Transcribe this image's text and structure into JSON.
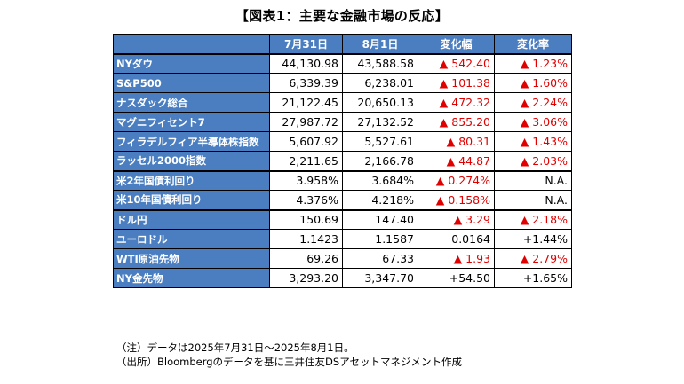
{
  "title": "【図表1：主要な金融市場の反応】",
  "columns": [
    "",
    "7月31日",
    "8月1日",
    "変化幅",
    "変化率"
  ],
  "rows": [
    {
      "name": "NYダウ",
      "v1": "44,130.98",
      "v2": "43,588.58",
      "chg": "▲ 542.40",
      "pct": "▲ 1.23%",
      "chg_up": true,
      "pct_up": true
    },
    {
      "name": "S&P500",
      "v1": "6,339.39",
      "v2": "6,238.01",
      "chg": "▲ 101.38",
      "pct": "▲ 1.60%",
      "chg_up": true,
      "pct_up": true
    },
    {
      "name": "ナスダック総合",
      "v1": "21,122.45",
      "v2": "20,650.13",
      "chg": "▲ 472.32",
      "pct": "▲ 2.24%",
      "chg_up": true,
      "pct_up": true
    },
    {
      "name": "マグニフィセント7",
      "v1": "27,987.72",
      "v2": "27,132.52",
      "chg": "▲ 855.20",
      "pct": "▲ 3.06%",
      "chg_up": true,
      "pct_up": true
    },
    {
      "name": "フィラデルフィア半導体株指数",
      "v1": "5,607.92",
      "v2": "5,527.61",
      "chg": "▲ 80.31",
      "pct": "▲ 1.43%",
      "chg_up": true,
      "pct_up": true
    },
    {
      "name": "ラッセル2000指数",
      "v1": "2,211.65",
      "v2": "2,166.78",
      "chg": "▲ 44.87",
      "pct": "▲ 2.03%",
      "chg_up": true,
      "pct_up": true
    },
    {
      "name": "米2年国債利回り",
      "v1": "3.958%",
      "v2": "3.684%",
      "chg": "▲ 0.274%",
      "pct": "N.A.",
      "chg_up": true,
      "pct_up": false
    },
    {
      "name": "米10年国債利回り",
      "v1": "4.376%",
      "v2": "4.218%",
      "chg": "▲ 0.158%",
      "pct": "N.A.",
      "chg_up": true,
      "pct_up": false
    },
    {
      "name": "ドル円",
      "v1": "150.69",
      "v2": "147.40",
      "chg": "▲ 3.29",
      "pct": "▲ 2.18%",
      "chg_up": true,
      "pct_up": true
    },
    {
      "name": "ユーロドル",
      "v1": "1.1423",
      "v2": "1.1587",
      "chg": "0.0164",
      "pct": "+1.44%",
      "chg_up": false,
      "pct_up": false
    },
    {
      "name": "WTI原油先物",
      "v1": "69.26",
      "v2": "67.33",
      "chg": "▲ 1.93",
      "pct": "▲ 2.79%",
      "chg_up": true,
      "pct_up": true
    },
    {
      "name": "NY金先物",
      "v1": "3,293.20",
      "v2": "3,347.70",
      "chg": "+54.50",
      "pct": "+1.65%",
      "chg_up": false,
      "pct_up": false
    }
  ],
  "notes": [
    "（注）データは2025年7月31日～2025年8月1日。",
    "（出所）Bloombergのデータを基に三井住友DSアセットマネジメント作成"
  ],
  "colors": {
    "header_bg": "#4a7ec0",
    "negative": "#e00000"
  }
}
